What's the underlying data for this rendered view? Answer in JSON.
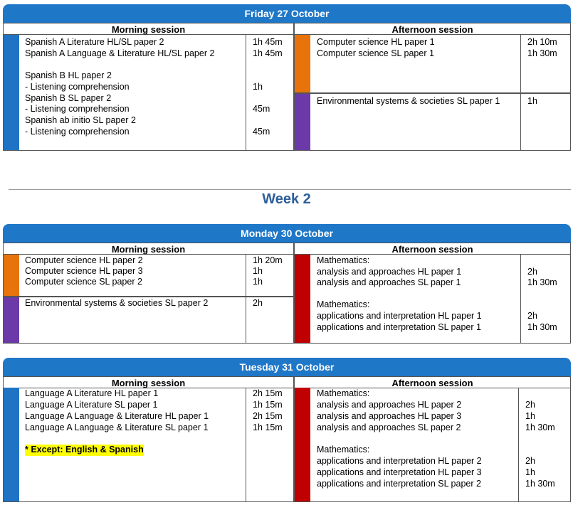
{
  "colors": {
    "header_blue": "#1f77c8",
    "language_blue": "#1e73c4",
    "computer_science_orange": "#e8730a",
    "environmental_purple": "#6b3aa8",
    "mathematics_red": "#c00000",
    "week_title": "#2d5f98",
    "note_highlight": "#ffff00"
  },
  "week_title": "Week 2",
  "days": {
    "fri": {
      "title": "Friday 27 October",
      "morning_label": "Morning session",
      "afternoon_label": "Afternoon session",
      "morning": {
        "blocks": [
          {
            "color": "language_blue",
            "subjects": [
              "Spanish A Literature HL/SL paper 2",
              "Spanish A Language & Literature HL/SL paper 2",
              "",
              "Spanish B HL paper 2",
              "- Listening comprehension",
              "Spanish B SL paper 2",
              "- Listening comprehension",
              "Spanish ab initio SL paper 2",
              "- Listening comprehension"
            ],
            "durations": [
              "1h 45m",
              "1h 45m",
              "",
              "",
              "1h",
              "",
              "45m",
              "",
              "45m"
            ]
          }
        ]
      },
      "afternoon": {
        "blocks": [
          {
            "color": "computer_science_orange",
            "subjects": [
              "Computer science HL paper 1",
              "Computer science SL paper 1"
            ],
            "durations": [
              "2h 10m",
              "1h 30m"
            ]
          },
          {
            "color": "environmental_purple",
            "subjects": [
              "Environmental systems & societies SL paper 1"
            ],
            "durations": [
              "1h"
            ]
          }
        ]
      }
    },
    "mon": {
      "title": "Monday 30 October",
      "morning_label": "Morning session",
      "afternoon_label": "Afternoon session",
      "morning": {
        "blocks": [
          {
            "color": "computer_science_orange",
            "subjects": [
              "Computer science HL paper 2",
              "Computer science HL paper 3",
              "Computer science SL paper 2"
            ],
            "durations": [
              "1h 20m",
              "1h",
              "1h"
            ]
          },
          {
            "color": "environmental_purple",
            "subjects": [
              "Environmental systems & societies SL paper 2"
            ],
            "durations": [
              "2h"
            ]
          }
        ]
      },
      "afternoon": {
        "blocks": [
          {
            "color": "mathematics_red",
            "subjects": [
              "Mathematics:",
              "analysis and approaches HL paper 1",
              "analysis and approaches SL paper 1",
              "",
              "Mathematics:",
              "applications and interpretation HL paper 1",
              "applications and interpretation SL paper 1"
            ],
            "durations": [
              "",
              "2h",
              "1h 30m",
              "",
              "",
              "2h",
              "1h 30m"
            ]
          }
        ]
      }
    },
    "tue": {
      "title": "Tuesday 31 October",
      "morning_label": "Morning session",
      "afternoon_label": "Afternoon session",
      "morning": {
        "blocks": [
          {
            "color": "language_blue",
            "subjects": [
              "Language A Literature HL paper 1",
              "Language A Literature SL paper 1",
              "Language A Language & Literature HL paper 1",
              "Language A Language & Literature SL paper 1"
            ],
            "durations": [
              "2h 15m",
              "1h 15m",
              "2h 15m",
              "1h 15m"
            ],
            "note": "* Except: English & Spanish"
          }
        ]
      },
      "afternoon": {
        "blocks": [
          {
            "color": "mathematics_red",
            "subjects": [
              "Mathematics:",
              "analysis and approaches HL paper 2",
              "analysis and approaches HL paper 3",
              "analysis and approaches SL paper 2",
              "",
              "Mathematics:",
              "applications and interpretation HL paper 2",
              "applications and interpretation HL paper 3",
              "applications and interpretation SL paper 2"
            ],
            "durations": [
              "",
              "2h",
              "1h",
              "1h 30m",
              "",
              "",
              "2h",
              "1h",
              "1h 30m"
            ]
          }
        ]
      }
    }
  }
}
